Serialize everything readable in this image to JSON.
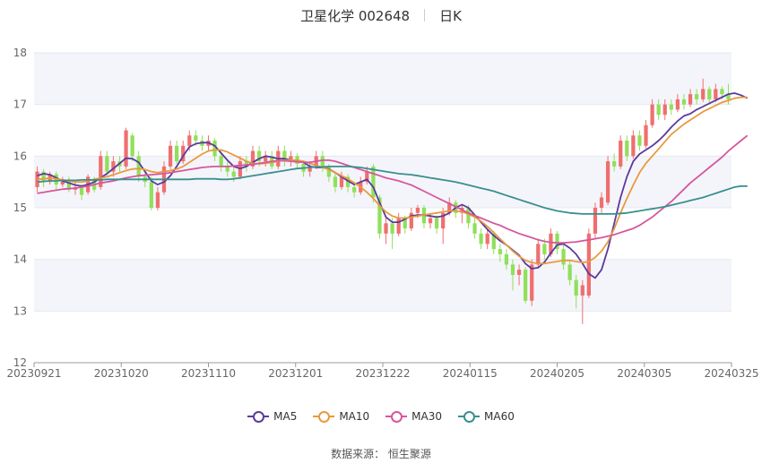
{
  "header": {
    "title": "卫星化学 002648",
    "period": "日K"
  },
  "source": {
    "label": "数据来源：",
    "value": "恒生聚源"
  },
  "colors": {
    "up": "#ef6f6f",
    "down": "#8fe05a",
    "grid": "#e6e8ef",
    "band": "#f4f5fa",
    "axis": "#999999"
  },
  "chart_data": {
    "type": "candlestick",
    "ylim": [
      12,
      18
    ],
    "yticks": [
      12,
      13,
      14,
      15,
      16,
      17,
      18
    ],
    "xticks": [
      "20230921",
      "20231020",
      "20231110",
      "20231201",
      "20231222",
      "20240115",
      "20240205",
      "20240305",
      "20240325"
    ],
    "legend_position": "bottom",
    "ma_series": [
      {
        "name": "MA5",
        "color": "#5b3a9c",
        "values": [
          15.62,
          15.66,
          15.64,
          15.58,
          15.52,
          15.48,
          15.44,
          15.42,
          15.45,
          15.5,
          15.58,
          15.66,
          15.76,
          15.86,
          15.96,
          15.95,
          15.88,
          15.7,
          15.52,
          15.45,
          15.5,
          15.62,
          15.8,
          16.0,
          16.18,
          16.24,
          16.26,
          16.26,
          16.2,
          16.06,
          15.92,
          15.8,
          15.76,
          15.8,
          15.88,
          15.95,
          16.0,
          15.98,
          15.95,
          15.95,
          15.92,
          15.92,
          15.88,
          15.8,
          15.78,
          15.78,
          15.75,
          15.68,
          15.6,
          15.52,
          15.45,
          15.5,
          15.55,
          15.4,
          15.1,
          14.82,
          14.72,
          14.72,
          14.78,
          14.84,
          14.86,
          14.86,
          14.84,
          14.82,
          14.84,
          14.9,
          15.0,
          15.06,
          15.0,
          14.86,
          14.72,
          14.58,
          14.46,
          14.36,
          14.28,
          14.18,
          14.08,
          13.92,
          13.82,
          13.84,
          13.95,
          14.12,
          14.28,
          14.3,
          14.22,
          14.1,
          13.92,
          13.72,
          13.64,
          13.8,
          14.2,
          14.7,
          15.2,
          15.6,
          15.9,
          16.04,
          16.12,
          16.2,
          16.3,
          16.42,
          16.56,
          16.68,
          16.78,
          16.82,
          16.9,
          16.96,
          17.02,
          17.08,
          17.14,
          17.2,
          17.22,
          17.18,
          17.12
        ]
      },
      {
        "name": "MA10",
        "color": "#e89a3e",
        "values": [
          15.55,
          15.56,
          15.57,
          15.56,
          15.54,
          15.52,
          15.5,
          15.5,
          15.52,
          15.55,
          15.58,
          15.6,
          15.64,
          15.68,
          15.72,
          15.75,
          15.76,
          15.74,
          15.7,
          15.68,
          15.7,
          15.72,
          15.75,
          15.8,
          15.88,
          15.96,
          16.04,
          16.1,
          16.12,
          16.12,
          16.08,
          16.02,
          15.96,
          15.9,
          15.86,
          15.85,
          15.86,
          15.88,
          15.9,
          15.92,
          15.92,
          15.92,
          15.9,
          15.86,
          15.82,
          15.78,
          15.74,
          15.68,
          15.62,
          15.56,
          15.48,
          15.4,
          15.3,
          15.18,
          15.04,
          14.92,
          14.84,
          14.8,
          14.8,
          14.82,
          14.84,
          14.86,
          14.88,
          14.9,
          14.92,
          14.94,
          14.94,
          14.92,
          14.88,
          14.82,
          14.74,
          14.64,
          14.52,
          14.4,
          14.28,
          14.16,
          14.06,
          13.98,
          13.94,
          13.92,
          13.92,
          13.94,
          13.96,
          13.98,
          13.98,
          13.96,
          13.94,
          13.96,
          14.04,
          14.16,
          14.34,
          14.6,
          14.9,
          15.18,
          15.44,
          15.68,
          15.86,
          16.0,
          16.14,
          16.28,
          16.42,
          16.52,
          16.62,
          16.7,
          16.78,
          16.86,
          16.92,
          16.98,
          17.04,
          17.08,
          17.12,
          17.14,
          17.14
        ]
      },
      {
        "name": "MA30",
        "color": "#d6579c",
        "values": [
          15.28,
          15.3,
          15.32,
          15.34,
          15.36,
          15.37,
          15.38,
          15.4,
          15.42,
          15.45,
          15.48,
          15.5,
          15.52,
          15.55,
          15.58,
          15.6,
          15.62,
          15.63,
          15.64,
          15.65,
          15.66,
          15.68,
          15.7,
          15.72,
          15.74,
          15.76,
          15.78,
          15.79,
          15.8,
          15.8,
          15.8,
          15.81,
          15.82,
          15.83,
          15.84,
          15.86,
          15.88,
          15.9,
          15.91,
          15.91,
          15.9,
          15.89,
          15.88,
          15.88,
          15.9,
          15.92,
          15.92,
          15.9,
          15.86,
          15.82,
          15.78,
          15.74,
          15.7,
          15.66,
          15.62,
          15.58,
          15.55,
          15.52,
          15.48,
          15.44,
          15.38,
          15.32,
          15.26,
          15.2,
          15.14,
          15.08,
          15.02,
          14.96,
          14.9,
          14.85,
          14.8,
          14.75,
          14.7,
          14.66,
          14.6,
          14.55,
          14.5,
          14.46,
          14.42,
          14.38,
          14.35,
          14.33,
          14.32,
          14.32,
          14.33,
          14.34,
          14.36,
          14.38,
          14.4,
          14.42,
          14.45,
          14.48,
          14.52,
          14.56,
          14.6,
          14.66,
          14.74,
          14.82,
          14.92,
          15.02,
          15.12,
          15.24,
          15.36,
          15.48,
          15.58,
          15.68,
          15.78,
          15.88,
          15.98,
          16.1,
          16.2,
          16.3,
          16.4
        ]
      },
      {
        "name": "MA60",
        "color": "#3a8f8f",
        "values": [
          15.5,
          15.51,
          15.52,
          15.52,
          15.53,
          15.53,
          15.53,
          15.54,
          15.54,
          15.54,
          15.54,
          15.55,
          15.55,
          15.55,
          15.55,
          15.55,
          15.55,
          15.55,
          15.55,
          15.55,
          15.55,
          15.55,
          15.55,
          15.55,
          15.55,
          15.56,
          15.56,
          15.56,
          15.56,
          15.55,
          15.55,
          15.56,
          15.58,
          15.6,
          15.62,
          15.64,
          15.66,
          15.68,
          15.7,
          15.72,
          15.74,
          15.76,
          15.77,
          15.78,
          15.79,
          15.79,
          15.8,
          15.8,
          15.8,
          15.8,
          15.79,
          15.78,
          15.76,
          15.74,
          15.72,
          15.7,
          15.68,
          15.66,
          15.65,
          15.64,
          15.62,
          15.6,
          15.58,
          15.56,
          15.54,
          15.52,
          15.5,
          15.47,
          15.44,
          15.41,
          15.38,
          15.35,
          15.32,
          15.28,
          15.24,
          15.2,
          15.16,
          15.12,
          15.08,
          15.04,
          15.0,
          14.97,
          14.94,
          14.92,
          14.9,
          14.89,
          14.88,
          14.88,
          14.88,
          14.88,
          14.88,
          14.88,
          14.89,
          14.9,
          14.92,
          14.94,
          14.96,
          14.98,
          15.0,
          15.02,
          15.05,
          15.08,
          15.11,
          15.14,
          15.17,
          15.2,
          15.24,
          15.28,
          15.32,
          15.36,
          15.4,
          15.42,
          15.42
        ]
      }
    ],
    "candles": [
      {
        "o": 15.4,
        "c": 15.7,
        "h": 15.8,
        "l": 15.3
      },
      {
        "o": 15.7,
        "c": 15.5,
        "h": 15.75,
        "l": 15.4
      },
      {
        "o": 15.5,
        "c": 15.65,
        "h": 15.7,
        "l": 15.45
      },
      {
        "o": 15.65,
        "c": 15.45,
        "h": 15.7,
        "l": 15.35
      },
      {
        "o": 15.45,
        "c": 15.55,
        "h": 15.6,
        "l": 15.4
      },
      {
        "o": 15.55,
        "c": 15.35,
        "h": 15.6,
        "l": 15.3
      },
      {
        "o": 15.35,
        "c": 15.4,
        "h": 15.5,
        "l": 15.25
      },
      {
        "o": 15.4,
        "c": 15.25,
        "h": 15.45,
        "l": 15.15
      },
      {
        "o": 15.3,
        "c": 15.6,
        "h": 15.65,
        "l": 15.25
      },
      {
        "o": 15.55,
        "c": 15.35,
        "h": 15.6,
        "l": 15.3
      },
      {
        "o": 15.4,
        "c": 16.0,
        "h": 16.1,
        "l": 15.35
      },
      {
        "o": 16.0,
        "c": 15.7,
        "h": 16.1,
        "l": 15.6
      },
      {
        "o": 15.7,
        "c": 15.9,
        "h": 16.0,
        "l": 15.6
      },
      {
        "o": 15.9,
        "c": 15.8,
        "h": 16.0,
        "l": 15.7
      },
      {
        "o": 15.8,
        "c": 16.5,
        "h": 16.55,
        "l": 15.75
      },
      {
        "o": 16.4,
        "c": 16.0,
        "h": 16.45,
        "l": 15.9
      },
      {
        "o": 16.0,
        "c": 15.6,
        "h": 16.1,
        "l": 15.5
      },
      {
        "o": 15.6,
        "c": 15.5,
        "h": 15.7,
        "l": 15.4
      },
      {
        "o": 15.5,
        "c": 15.0,
        "h": 15.6,
        "l": 14.95
      },
      {
        "o": 15.0,
        "c": 15.3,
        "h": 15.4,
        "l": 14.95
      },
      {
        "o": 15.3,
        "c": 15.8,
        "h": 15.9,
        "l": 15.25
      },
      {
        "o": 15.8,
        "c": 16.2,
        "h": 16.3,
        "l": 15.75
      },
      {
        "o": 16.2,
        "c": 15.9,
        "h": 16.3,
        "l": 15.85
      },
      {
        "o": 15.9,
        "c": 16.2,
        "h": 16.3,
        "l": 15.85
      },
      {
        "o": 16.2,
        "c": 16.4,
        "h": 16.5,
        "l": 16.1
      },
      {
        "o": 16.4,
        "c": 16.3,
        "h": 16.5,
        "l": 16.2
      },
      {
        "o": 16.3,
        "c": 16.2,
        "h": 16.4,
        "l": 16.1
      },
      {
        "o": 16.2,
        "c": 16.3,
        "h": 16.4,
        "l": 16.1
      },
      {
        "o": 16.3,
        "c": 16.0,
        "h": 16.35,
        "l": 15.9
      },
      {
        "o": 16.0,
        "c": 15.8,
        "h": 16.1,
        "l": 15.7
      },
      {
        "o": 15.8,
        "c": 15.7,
        "h": 15.9,
        "l": 15.6
      },
      {
        "o": 15.7,
        "c": 15.6,
        "h": 15.8,
        "l": 15.5
      },
      {
        "o": 15.6,
        "c": 15.9,
        "h": 16.0,
        "l": 15.55
      },
      {
        "o": 15.9,
        "c": 15.8,
        "h": 16.0,
        "l": 15.7
      },
      {
        "o": 15.8,
        "c": 16.1,
        "h": 16.2,
        "l": 15.75
      },
      {
        "o": 16.1,
        "c": 15.9,
        "h": 16.2,
        "l": 15.8
      },
      {
        "o": 15.9,
        "c": 16.0,
        "h": 16.1,
        "l": 15.8
      },
      {
        "o": 16.0,
        "c": 15.8,
        "h": 16.1,
        "l": 15.75
      },
      {
        "o": 15.8,
        "c": 16.1,
        "h": 16.2,
        "l": 15.75
      },
      {
        "o": 16.1,
        "c": 15.9,
        "h": 16.2,
        "l": 15.8
      },
      {
        "o": 15.9,
        "c": 16.0,
        "h": 16.1,
        "l": 15.8
      },
      {
        "o": 16.0,
        "c": 15.85,
        "h": 16.05,
        "l": 15.75
      },
      {
        "o": 15.85,
        "c": 15.7,
        "h": 15.9,
        "l": 15.6
      },
      {
        "o": 15.7,
        "c": 15.8,
        "h": 15.9,
        "l": 15.6
      },
      {
        "o": 15.8,
        "c": 16.0,
        "h": 16.1,
        "l": 15.75
      },
      {
        "o": 16.0,
        "c": 15.8,
        "h": 16.1,
        "l": 15.7
      },
      {
        "o": 15.8,
        "c": 15.6,
        "h": 15.85,
        "l": 15.5
      },
      {
        "o": 15.6,
        "c": 15.4,
        "h": 15.7,
        "l": 15.3
      },
      {
        "o": 15.4,
        "c": 15.6,
        "h": 15.7,
        "l": 15.35
      },
      {
        "o": 15.6,
        "c": 15.4,
        "h": 15.65,
        "l": 15.3
      },
      {
        "o": 15.4,
        "c": 15.3,
        "h": 15.5,
        "l": 15.2
      },
      {
        "o": 15.3,
        "c": 15.5,
        "h": 15.6,
        "l": 15.25
      },
      {
        "o": 15.5,
        "c": 15.7,
        "h": 15.8,
        "l": 15.45
      },
      {
        "o": 15.8,
        "c": 15.2,
        "h": 15.85,
        "l": 15.1
      },
      {
        "o": 15.2,
        "c": 14.5,
        "h": 15.25,
        "l": 14.4
      },
      {
        "o": 14.5,
        "c": 14.7,
        "h": 14.8,
        "l": 14.3
      },
      {
        "o": 14.7,
        "c": 14.5,
        "h": 14.8,
        "l": 14.2
      },
      {
        "o": 14.5,
        "c": 14.8,
        "h": 14.9,
        "l": 14.45
      },
      {
        "o": 14.8,
        "c": 14.6,
        "h": 14.85,
        "l": 14.5
      },
      {
        "o": 14.6,
        "c": 14.9,
        "h": 15.0,
        "l": 14.55
      },
      {
        "o": 14.9,
        "c": 15.0,
        "h": 15.05,
        "l": 14.8
      },
      {
        "o": 15.0,
        "c": 14.7,
        "h": 15.05,
        "l": 14.6
      },
      {
        "o": 14.7,
        "c": 14.8,
        "h": 14.9,
        "l": 14.6
      },
      {
        "o": 14.8,
        "c": 14.6,
        "h": 14.85,
        "l": 14.5
      },
      {
        "o": 14.6,
        "c": 14.9,
        "h": 15.0,
        "l": 14.3
      },
      {
        "o": 14.9,
        "c": 15.1,
        "h": 15.2,
        "l": 14.85
      },
      {
        "o": 15.1,
        "c": 14.9,
        "h": 15.15,
        "l": 14.8
      },
      {
        "o": 14.9,
        "c": 15.0,
        "h": 15.05,
        "l": 14.7
      },
      {
        "o": 15.0,
        "c": 14.7,
        "h": 15.05,
        "l": 14.6
      },
      {
        "o": 14.7,
        "c": 14.5,
        "h": 14.8,
        "l": 14.4
      },
      {
        "o": 14.5,
        "c": 14.3,
        "h": 14.6,
        "l": 14.2
      },
      {
        "o": 14.3,
        "c": 14.5,
        "h": 14.6,
        "l": 14.2
      },
      {
        "o": 14.5,
        "c": 14.2,
        "h": 14.55,
        "l": 14.1
      },
      {
        "o": 14.2,
        "c": 14.1,
        "h": 14.3,
        "l": 13.95
      },
      {
        "o": 14.1,
        "c": 13.9,
        "h": 14.2,
        "l": 13.8
      },
      {
        "o": 13.9,
        "c": 13.7,
        "h": 14.0,
        "l": 13.4
      },
      {
        "o": 13.7,
        "c": 13.8,
        "h": 13.9,
        "l": 13.5
      },
      {
        "o": 13.8,
        "c": 13.2,
        "h": 13.85,
        "l": 13.15
      },
      {
        "o": 13.2,
        "c": 13.9,
        "h": 14.0,
        "l": 13.1
      },
      {
        "o": 13.9,
        "c": 14.3,
        "h": 14.4,
        "l": 13.85
      },
      {
        "o": 14.3,
        "c": 14.1,
        "h": 14.4,
        "l": 14.0
      },
      {
        "o": 14.1,
        "c": 14.5,
        "h": 14.6,
        "l": 14.05
      },
      {
        "o": 14.5,
        "c": 14.2,
        "h": 14.55,
        "l": 14.1
      },
      {
        "o": 14.2,
        "c": 13.9,
        "h": 14.3,
        "l": 13.8
      },
      {
        "o": 13.9,
        "c": 13.6,
        "h": 14.0,
        "l": 13.5
      },
      {
        "o": 13.6,
        "c": 13.3,
        "h": 13.7,
        "l": 13.05
      },
      {
        "o": 13.3,
        "c": 13.5,
        "h": 13.6,
        "l": 12.75
      },
      {
        "o": 13.3,
        "c": 14.5,
        "h": 14.6,
        "l": 13.25
      },
      {
        "o": 14.5,
        "c": 15.0,
        "h": 15.1,
        "l": 14.4
      },
      {
        "o": 15.0,
        "c": 15.2,
        "h": 15.3,
        "l": 14.9
      },
      {
        "o": 15.1,
        "c": 15.9,
        "h": 16.0,
        "l": 15.05
      },
      {
        "o": 15.9,
        "c": 15.8,
        "h": 16.05,
        "l": 15.7
      },
      {
        "o": 15.8,
        "c": 16.3,
        "h": 16.4,
        "l": 15.75
      },
      {
        "o": 16.3,
        "c": 16.0,
        "h": 16.4,
        "l": 15.9
      },
      {
        "o": 16.0,
        "c": 16.4,
        "h": 16.5,
        "l": 15.95
      },
      {
        "o": 16.4,
        "c": 16.2,
        "h": 16.5,
        "l": 16.1
      },
      {
        "o": 16.2,
        "c": 16.6,
        "h": 16.7,
        "l": 16.15
      },
      {
        "o": 16.6,
        "c": 17.0,
        "h": 17.1,
        "l": 16.55
      },
      {
        "o": 17.0,
        "c": 16.8,
        "h": 17.1,
        "l": 16.7
      },
      {
        "o": 16.8,
        "c": 17.0,
        "h": 17.1,
        "l": 16.7
      },
      {
        "o": 17.0,
        "c": 16.9,
        "h": 17.1,
        "l": 16.8
      },
      {
        "o": 16.9,
        "c": 17.1,
        "h": 17.2,
        "l": 16.85
      },
      {
        "o": 17.1,
        "c": 17.0,
        "h": 17.2,
        "l": 16.9
      },
      {
        "o": 17.0,
        "c": 17.2,
        "h": 17.3,
        "l": 16.95
      },
      {
        "o": 17.2,
        "c": 17.1,
        "h": 17.3,
        "l": 17.0
      },
      {
        "o": 17.1,
        "c": 17.3,
        "h": 17.5,
        "l": 17.05
      },
      {
        "o": 17.3,
        "c": 17.1,
        "h": 17.35,
        "l": 17.0
      },
      {
        "o": 17.1,
        "c": 17.3,
        "h": 17.4,
        "l": 17.05
      },
      {
        "o": 17.3,
        "c": 17.2,
        "h": 17.35,
        "l": 17.1
      },
      {
        "o": 17.2,
        "c": 17.1,
        "h": 17.4,
        "l": 17.0
      }
    ]
  }
}
